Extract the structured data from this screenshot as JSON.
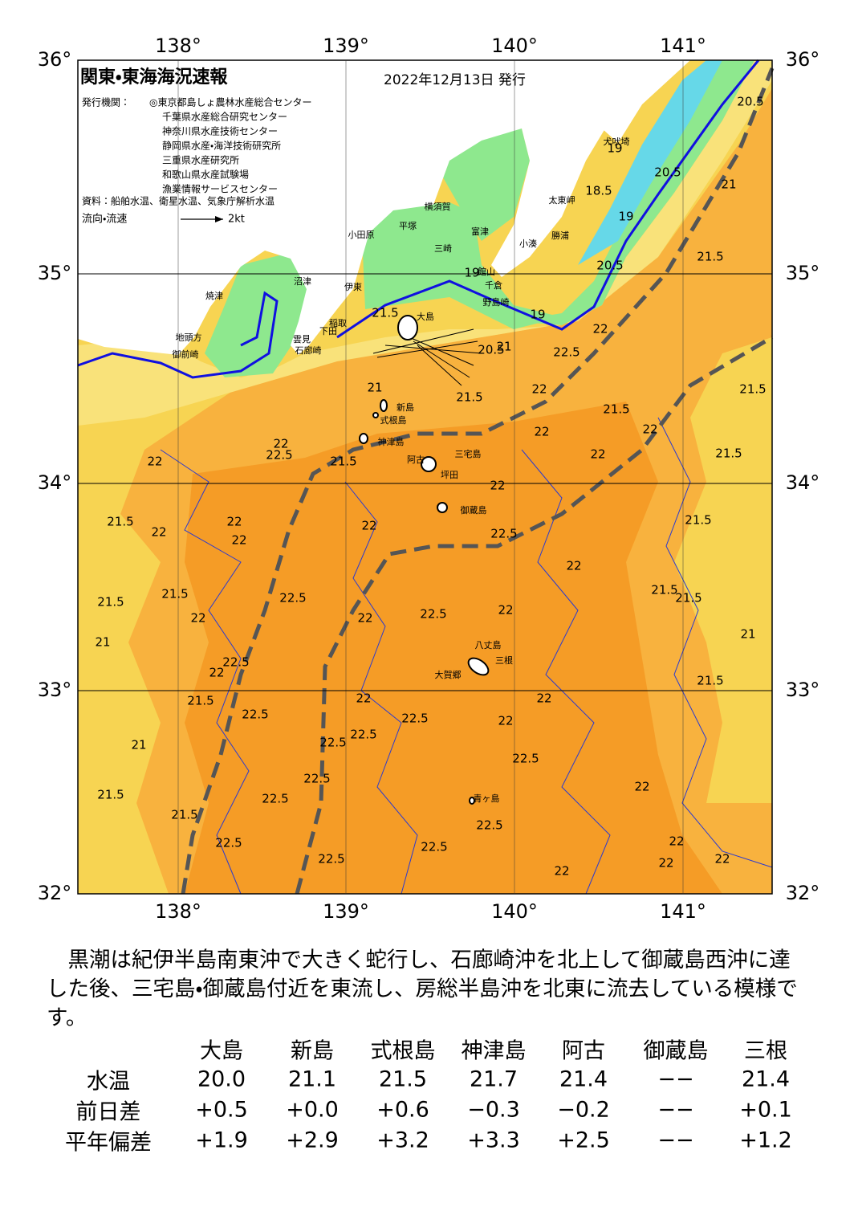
{
  "header": {
    "title": "関東・東海海況速報",
    "date": "2022年12月13日 発行"
  },
  "issuers": {
    "label": "発行機関：",
    "names": [
      "◎東京都島しょ農林水産総合センター",
      "千葉県水産総合研究センター",
      "神奈川県水産技術センター",
      "静岡県水産・海洋技術研究所",
      "三重県水産研究所",
      "和歌山県水産試験場",
      "漁業情報サービスセンター"
    ]
  },
  "source": "資料：船舶水温、衛星水温、気象庁解析水温",
  "legend": {
    "label": "流向・流速",
    "scale": "2kt"
  },
  "axes": {
    "longitudes": [
      "138°",
      "139°",
      "140°",
      "141°"
    ],
    "latitudes": [
      "36°",
      "35°",
      "34°",
      "33°",
      "32°"
    ]
  },
  "place_names": [
    "大島",
    "新島",
    "式根島",
    "神津島",
    "三宅島",
    "阿古",
    "坪田",
    "御蔵島",
    "八丈島",
    "三根",
    "大賀郷",
    "青ヶ島",
    "小田原",
    "平塚",
    "横須賀",
    "富津",
    "館山",
    "千倉",
    "野島崎",
    "三崎",
    "小湊",
    "勝浦",
    "太東岬",
    "犬吠埼",
    "沼津",
    "伊東",
    "稲取",
    "下田",
    "雲見",
    "石廊崎",
    "焼津",
    "御前崎",
    "地頭方"
  ],
  "contour_labels": [
    20.5,
    19,
    18.5,
    20.5,
    21,
    19,
    21.5,
    20.5,
    19,
    22,
    22.5,
    21,
    20.5,
    19,
    21.5,
    21,
    21.5,
    22,
    21.5,
    22,
    21.5,
    21.5,
    22,
    22,
    21.5,
    22,
    22.5,
    22,
    22,
    22.5,
    21.5,
    22,
    22,
    22,
    21.5,
    22,
    22,
    22.5,
    21.5,
    21.5,
    21.5,
    21.5,
    22,
    22.5,
    22,
    22,
    21,
    21,
    22,
    22.5,
    21.5,
    21.5,
    22.5,
    22,
    22.5,
    22,
    22,
    22.5,
    22.5,
    21,
    22.5,
    22.5,
    22,
    21.5,
    22.5,
    21.5,
    22.5,
    22.5,
    22.5,
    22.5,
    22,
    22,
    22,
    22
  ],
  "summary": "　黒潮は紀伊半島南東沖で大きく蛇行し、石廊崎沖を北上して御蔵島西沖に達した後、三宅島・御蔵島付近を東流し、房総半島沖を北東に流去している模様です。",
  "table": {
    "columns": [
      "大島",
      "新島",
      "式根島",
      "神津島",
      "阿古",
      "御蔵島",
      "三根"
    ],
    "rows": [
      {
        "label": "水温",
        "values": [
          "20.0",
          "21.1",
          "21.5",
          "21.7",
          "21.4",
          "−−",
          "21.4"
        ]
      },
      {
        "label": "前日差",
        "values": [
          "+0.5",
          "+0.0",
          "+0.6",
          "−0.3",
          "−0.2",
          "−−",
          "+0.1"
        ]
      },
      {
        "label": "平年偏差",
        "values": [
          "+1.9",
          "+2.9",
          "+3.2",
          "+3.3",
          "+2.5",
          "−−",
          "+1.2"
        ]
      }
    ]
  }
}
